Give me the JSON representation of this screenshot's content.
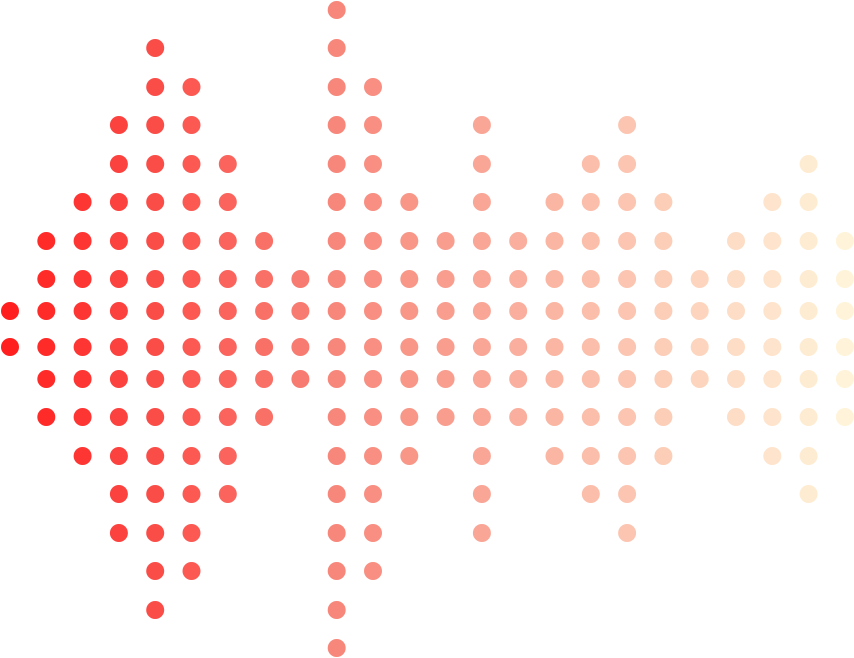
{
  "graphic": {
    "kind": "dot-matrix sound wave",
    "colors": {
      "start": "#ff1f1f",
      "middle": "#f7877b",
      "end": "#fff4d9"
    },
    "rows_count": 18,
    "columns": [
      [
        8,
        9
      ],
      [
        6,
        7,
        8,
        9,
        10,
        11
      ],
      [
        5,
        6,
        7,
        8,
        9,
        10,
        11,
        12
      ],
      [
        3,
        4,
        5,
        6,
        7,
        8,
        9,
        10,
        11,
        12,
        13,
        14
      ],
      [
        1,
        2,
        3,
        4,
        5,
        6,
        7,
        8,
        9,
        10,
        11,
        12,
        13,
        14,
        15,
        16
      ],
      [
        2,
        3,
        4,
        5,
        6,
        7,
        8,
        9,
        10,
        11,
        12,
        13,
        14,
        15
      ],
      [
        4,
        5,
        6,
        7,
        8,
        9,
        10,
        11,
        12,
        13
      ],
      [
        6,
        7,
        8,
        9,
        10,
        11
      ],
      [
        7,
        8,
        9,
        10
      ],
      [
        0,
        1,
        2,
        3,
        4,
        5,
        6,
        7,
        8,
        9,
        10,
        11,
        12,
        13,
        14,
        15,
        16,
        17
      ],
      [
        2,
        3,
        4,
        5,
        6,
        7,
        8,
        9,
        10,
        11,
        12,
        13,
        14,
        15
      ],
      [
        5,
        6,
        7,
        8,
        9,
        10,
        11,
        12
      ],
      [
        6,
        7,
        8,
        9,
        10,
        11
      ],
      [
        3,
        4,
        5,
        6,
        7,
        8,
        9,
        10,
        11,
        12,
        13,
        14
      ],
      [
        6,
        7,
        8,
        9,
        10,
        11
      ],
      [
        5,
        6,
        7,
        8,
        9,
        10,
        11,
        12
      ],
      [
        4,
        5,
        6,
        7,
        8,
        9,
        10,
        11,
        12,
        13
      ],
      [
        3,
        4,
        5,
        6,
        7,
        8,
        9,
        10,
        11,
        12,
        13,
        14
      ],
      [
        5,
        6,
        7,
        8,
        9,
        10,
        11,
        12
      ],
      [
        7,
        8,
        9,
        10
      ],
      [
        6,
        7,
        8,
        9,
        10,
        11
      ],
      [
        5,
        6,
        7,
        8,
        9,
        10,
        11,
        12
      ],
      [
        4,
        5,
        6,
        7,
        8,
        9,
        10,
        11,
        12,
        13
      ],
      [
        6,
        7,
        8,
        9,
        10,
        11
      ]
    ]
  }
}
